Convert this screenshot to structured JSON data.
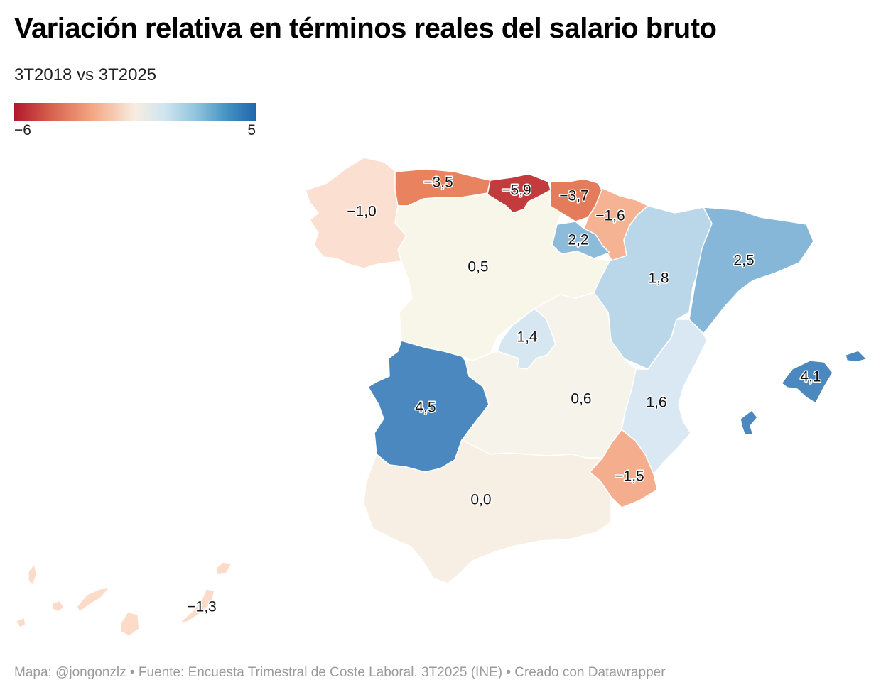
{
  "title": "Variación relativa en términos reales del salario bruto",
  "subtitle": "3T2018 vs 3T2025",
  "legend": {
    "min_label": "−6",
    "max_label": "5",
    "min_value": -6,
    "max_value": 5
  },
  "regions": [
    {
      "id": "galicia",
      "label": "−1,0",
      "value": -1.0,
      "color": "#fbe0d1"
    },
    {
      "id": "asturias",
      "label": "−3,5",
      "value": -3.5,
      "color": "#e8825f"
    },
    {
      "id": "cantabria",
      "label": "−5,9",
      "value": -5.9,
      "color": "#c33c3d"
    },
    {
      "id": "pais-vasco",
      "label": "−3,7",
      "value": -3.7,
      "color": "#e47b5a"
    },
    {
      "id": "navarra",
      "label": "−1,6",
      "value": -1.6,
      "color": "#f5b393"
    },
    {
      "id": "la-rioja",
      "label": "2,2",
      "value": 2.2,
      "color": "#8dbcdb"
    },
    {
      "id": "aragon",
      "label": "1,8",
      "value": 1.8,
      "color": "#bad7e9"
    },
    {
      "id": "cataluna",
      "label": "2,5",
      "value": 2.5,
      "color": "#86b6d8"
    },
    {
      "id": "castilla-y-leon",
      "label": "0,5",
      "value": 0.5,
      "color": "#f8f5e9"
    },
    {
      "id": "madrid",
      "label": "1,4",
      "value": 1.4,
      "color": "#d6e7f1"
    },
    {
      "id": "castilla-la-mancha",
      "label": "0,6",
      "value": 0.6,
      "color": "#f6f4ea"
    },
    {
      "id": "extremadura",
      "label": "4,5",
      "value": 4.5,
      "color": "#4b88bf"
    },
    {
      "id": "comunitat-valenciana",
      "label": "1,6",
      "value": 1.6,
      "color": "#d9e8f2"
    },
    {
      "id": "region-de-murcia",
      "label": "−1,5",
      "value": -1.5,
      "color": "#f4ae8d"
    },
    {
      "id": "andalucia",
      "label": "0,0",
      "value": 0.0,
      "color": "#f8efe4"
    },
    {
      "id": "illes-balears",
      "label": "4,1",
      "value": 4.1,
      "color": "#4b88bf"
    },
    {
      "id": "canarias",
      "label": "−1,3",
      "value": -1.3,
      "color": "#fcdcc9"
    }
  ],
  "footer": "Mapa: @jongonzlz • Fuente: Encuesta Trimestral de Coste Laboral. 3T2025 (INE) • Creado con Datawrapper"
}
